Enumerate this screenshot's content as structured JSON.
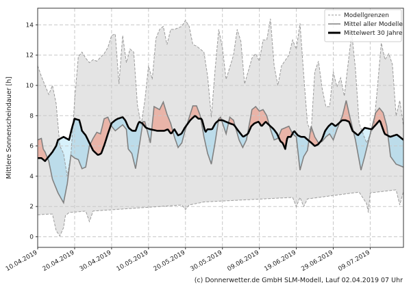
{
  "chart_data": {
    "type": "area",
    "ylabel": "Mittlere Sonnenscheindauer [h]",
    "xlabel": "",
    "x_unit": "days since 10.04.2019",
    "xlim": [
      0,
      99
    ],
    "ylim": [
      -0.7,
      15.1
    ],
    "yticks": [
      0,
      2,
      4,
      6,
      8,
      10,
      12,
      14
    ],
    "xticks": [
      0,
      10,
      20,
      30,
      40,
      50,
      60,
      70,
      80,
      90
    ],
    "xtick_labels": [
      "10.04.2019",
      "20.04.2019",
      "30.04.2019",
      "10.05.2019",
      "20.05.2019",
      "30.05.2019",
      "09.06.2019",
      "19.06.2019",
      "29.06.2019",
      "09.07.2019"
    ],
    "grid": true,
    "legend_position": "top-right",
    "legend": [
      "Modellgrenzen",
      "Mittel aller Modelle",
      "Mittelwert 30 Jahre"
    ],
    "series": [
      {
        "name": "Modellgrenzen (max)",
        "x": [
          0,
          1,
          2,
          3,
          4,
          5,
          6,
          7,
          8,
          9,
          10,
          11,
          12,
          13,
          14,
          15,
          16,
          18,
          19,
          20,
          21,
          22,
          23,
          24,
          25,
          26,
          27,
          28,
          29,
          30,
          31,
          32,
          33,
          34,
          35,
          36,
          37,
          38,
          39,
          40,
          41,
          42,
          43,
          44,
          45,
          46,
          47,
          48,
          49,
          50,
          51,
          53,
          54,
          55,
          56,
          58,
          59,
          60,
          61,
          62,
          63,
          64,
          65,
          66,
          68,
          69,
          70,
          71,
          72,
          73,
          74,
          75,
          76,
          77,
          78,
          79,
          80,
          81,
          82,
          83,
          85,
          86,
          87,
          89,
          91,
          92,
          93,
          94,
          95,
          96,
          97,
          98,
          99
        ],
        "y": [
          11.3,
          10.6,
          10.0,
          9.4,
          10.0,
          8.8,
          6.0,
          5.5,
          4.0,
          5.4,
          9.0,
          11.9,
          12.2,
          11.8,
          11.5,
          11.7,
          11.6,
          12.1,
          12.5,
          13.3,
          13.4,
          10.1,
          13.3,
          11.5,
          12.4,
          12.2,
          8.7,
          7.4,
          9.0,
          11.3,
          10.4,
          13.1,
          13.7,
          13.9,
          12.7,
          13.7,
          13.7,
          13.8,
          13.9,
          14.3,
          13.9,
          12.7,
          12.6,
          12.4,
          12.2,
          10.6,
          7.9,
          11.0,
          13.7,
          12.5,
          10.4,
          12.0,
          13.7,
          12.9,
          10.1,
          11.8,
          12.1,
          11.6,
          13.0,
          13.0,
          14.4,
          11.3,
          10.0,
          11.3,
          12.0,
          13.0,
          12.4,
          14.1,
          10.7,
          7.5,
          6.9,
          10.9,
          11.6,
          9.8,
          8.6,
          8.6,
          10.9,
          9.9,
          10.5,
          9.3,
          13.5,
          11.1,
          7.5,
          6.2,
          7.3,
          10.0,
          12.8,
          11.7,
          12.1,
          11.4,
          8.0,
          9.0,
          7.3
        ]
      },
      {
        "name": "Modellgrenzen (min)",
        "x": [
          0,
          3,
          4,
          5,
          6,
          7,
          7.5,
          8.5,
          13,
          14,
          15,
          39,
          40,
          41,
          45,
          69,
          70,
          71,
          72,
          73,
          87,
          89,
          89.5,
          90,
          97,
          98,
          99
        ],
        "y": [
          1.45,
          1.5,
          1.5,
          0.4,
          0.05,
          0.6,
          1.4,
          1.6,
          1.7,
          1.0,
          1.7,
          2.1,
          1.8,
          2.1,
          2.3,
          2.6,
          2.0,
          2.6,
          2.0,
          2.5,
          2.95,
          2.2,
          1.6,
          2.9,
          3.1,
          2.1,
          3.0
        ]
      },
      {
        "name": "Mittel aller Modelle",
        "x": [
          0,
          1,
          1.5,
          2,
          3,
          4,
          5.5,
          7,
          8,
          9,
          10,
          11,
          12,
          13,
          14,
          15,
          16,
          17,
          18,
          19,
          20,
          21,
          22,
          23,
          24,
          24.5,
          25.5,
          26.5,
          27.5,
          28.5,
          29,
          30.5,
          31.5,
          33,
          34,
          35,
          36,
          37,
          38,
          39,
          40,
          42,
          43,
          44,
          45,
          46,
          47,
          48,
          49,
          49.5,
          51,
          52,
          53,
          54.5,
          55.5,
          56.5,
          58,
          59,
          60,
          61,
          62,
          63,
          64,
          65,
          66,
          68,
          69,
          70,
          71,
          72,
          73,
          74,
          75,
          76,
          77,
          78,
          79,
          80,
          81,
          82.5,
          83.5,
          84.5,
          86,
          87.5,
          88.5,
          90,
          91.5,
          92.5,
          93.5,
          94.5,
          95.5,
          97,
          99
        ],
        "y": [
          6.4,
          6.5,
          5.8,
          5.6,
          5.0,
          3.8,
          2.9,
          2.25,
          3.5,
          5.4,
          5.2,
          5.1,
          4.5,
          4.6,
          6.0,
          6.5,
          6.9,
          6.8,
          7.8,
          7.9,
          7.3,
          7.0,
          7.2,
          7.4,
          7.1,
          5.8,
          5.5,
          4.5,
          6.0,
          7.6,
          7.6,
          6.2,
          8.6,
          8.4,
          8.9,
          8.1,
          7.5,
          6.6,
          5.9,
          6.2,
          7.1,
          8.65,
          8.65,
          8.0,
          6.6,
          5.5,
          4.8,
          6.2,
          7.8,
          7.9,
          6.8,
          7.9,
          7.7,
          6.4,
          5.9,
          6.4,
          8.4,
          8.6,
          8.3,
          8.4,
          8.0,
          7.1,
          6.4,
          6.5,
          7.1,
          7.3,
          6.8,
          6.6,
          4.4,
          5.3,
          5.7,
          7.3,
          6.6,
          6.2,
          6.3,
          6.6,
          6.8,
          6.4,
          7.1,
          8.0,
          9.0,
          7.9,
          6.4,
          4.4,
          5.3,
          6.8,
          8.2,
          8.5,
          8.2,
          7.3,
          5.3,
          4.8,
          4.6
        ]
      },
      {
        "name": "Mittelwert 30 Jahre",
        "x": [
          0,
          1,
          2,
          3,
          4,
          5,
          5.5,
          7,
          8.5,
          9.3,
          10,
          11.3,
          12,
          13,
          14,
          15,
          16.3,
          17.2,
          18.1,
          19,
          20,
          21,
          21.7,
          23,
          23.7,
          24.6,
          25.6,
          26.5,
          27.4,
          28.3,
          29.3,
          30.5,
          32.4,
          34.3,
          35.2,
          36.1,
          37,
          38,
          38.9,
          39.8,
          41.3,
          42.6,
          43.5,
          44.4,
          45.4,
          45.9,
          47.2,
          48.1,
          49,
          50,
          51.9,
          53.1,
          54.3,
          55.6,
          56.9,
          57.8,
          58.7,
          59.8,
          60.6,
          61.7,
          63,
          63.9,
          64.8,
          65.7,
          66.3,
          67,
          67.6,
          68.5,
          69.4,
          70.4,
          71.3,
          72.2,
          73.1,
          74.1,
          75,
          75.9,
          76.9,
          77.8,
          78.7,
          79.6,
          80.6,
          81.5,
          82.4,
          83.3,
          84.3,
          85.2,
          86.7,
          88.5,
          90.4,
          92.6,
          93.9,
          95.4,
          97.2,
          99
        ],
        "y": [
          5.2,
          5.2,
          5.0,
          5.3,
          5.6,
          6.0,
          6.4,
          6.6,
          6.4,
          7.2,
          7.8,
          7.7,
          7.0,
          6.7,
          6.2,
          5.7,
          5.4,
          5.5,
          6.1,
          6.8,
          7.5,
          7.7,
          7.8,
          7.9,
          7.7,
          7.2,
          7.0,
          7.0,
          7.6,
          7.5,
          7.2,
          7.1,
          7.0,
          7.0,
          7.1,
          6.8,
          7.1,
          6.7,
          6.8,
          7.2,
          7.7,
          8.0,
          7.8,
          7.8,
          6.9,
          7.1,
          7.1,
          7.5,
          7.7,
          7.7,
          7.5,
          7.4,
          7.0,
          6.6,
          6.8,
          7.3,
          7.5,
          7.6,
          7.3,
          7.6,
          7.3,
          7.1,
          6.8,
          6.3,
          6.2,
          5.8,
          6.6,
          6.6,
          7.0,
          6.7,
          6.6,
          6.6,
          6.4,
          6.2,
          6.0,
          6.1,
          6.4,
          7.0,
          7.3,
          7.5,
          7.3,
          7.5,
          7.7,
          7.7,
          7.6,
          7.0,
          6.7,
          7.2,
          7.1,
          7.7,
          6.8,
          6.6,
          6.75,
          6.4
        ]
      }
    ],
    "colors": {
      "range_fill": "#e4e4e4",
      "above": "#e9b4a8",
      "below": "#bcdcea",
      "upper_below": "#d7f1fb",
      "mean_line": "#808080",
      "clim_line": "#000000",
      "bound_line": "#9a9a9a"
    }
  },
  "footer": "(c) Donnerwetter.de GmbH SLM-Modell, Lauf 02.04.2019 07 Uhr"
}
